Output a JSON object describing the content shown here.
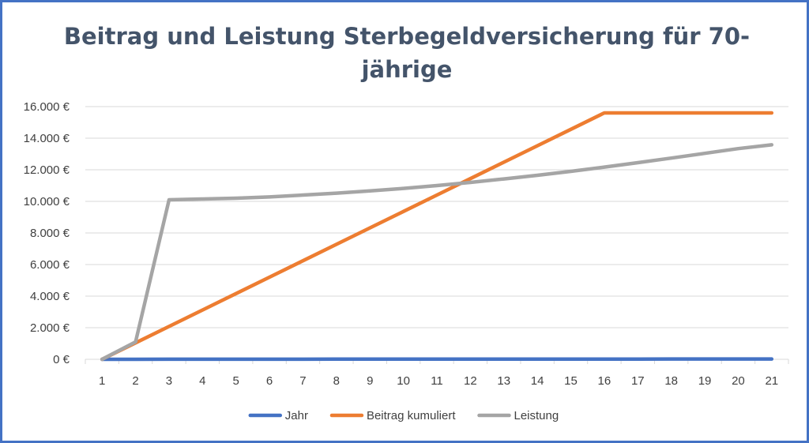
{
  "chart_data": {
    "type": "line",
    "title": "Beitrag und Leistung Sterbegeldversicherung für 70-jährige",
    "x": [
      1,
      2,
      3,
      4,
      5,
      6,
      7,
      8,
      9,
      10,
      11,
      12,
      13,
      14,
      15,
      16,
      17,
      18,
      19,
      20,
      21
    ],
    "ylim": [
      0,
      16000
    ],
    "y_ticks": [
      0,
      2000,
      4000,
      6000,
      8000,
      10000,
      12000,
      14000,
      16000
    ],
    "y_tick_labels": [
      "0 €",
      "2.000 €",
      "4.000 €",
      "6.000 €",
      "8.000 €",
      "10.000 €",
      "12.000 €",
      "14.000 €",
      "16.000 €"
    ],
    "grid": true,
    "legend_position": "bottom",
    "series": [
      {
        "name": "Jahr",
        "color": "#4472c4",
        "values": [
          1,
          2,
          3,
          4,
          5,
          6,
          7,
          8,
          9,
          10,
          11,
          12,
          13,
          14,
          15,
          16,
          17,
          18,
          19,
          20,
          21
        ]
      },
      {
        "name": "Beitrag kumuliert",
        "color": "#ed7d31",
        "values": [
          0,
          1040,
          2080,
          3120,
          4160,
          5200,
          6240,
          7280,
          8320,
          9360,
          10400,
          11440,
          12480,
          13520,
          14560,
          15600,
          15600,
          15600,
          15600,
          15600,
          15600
        ]
      },
      {
        "name": "Leistung",
        "color": "#a5a5a5",
        "values": [
          0,
          1100,
          10100,
          10150,
          10200,
          10280,
          10400,
          10520,
          10660,
          10820,
          11000,
          11200,
          11420,
          11650,
          11900,
          12170,
          12450,
          12740,
          13040,
          13340,
          13580
        ]
      }
    ]
  }
}
